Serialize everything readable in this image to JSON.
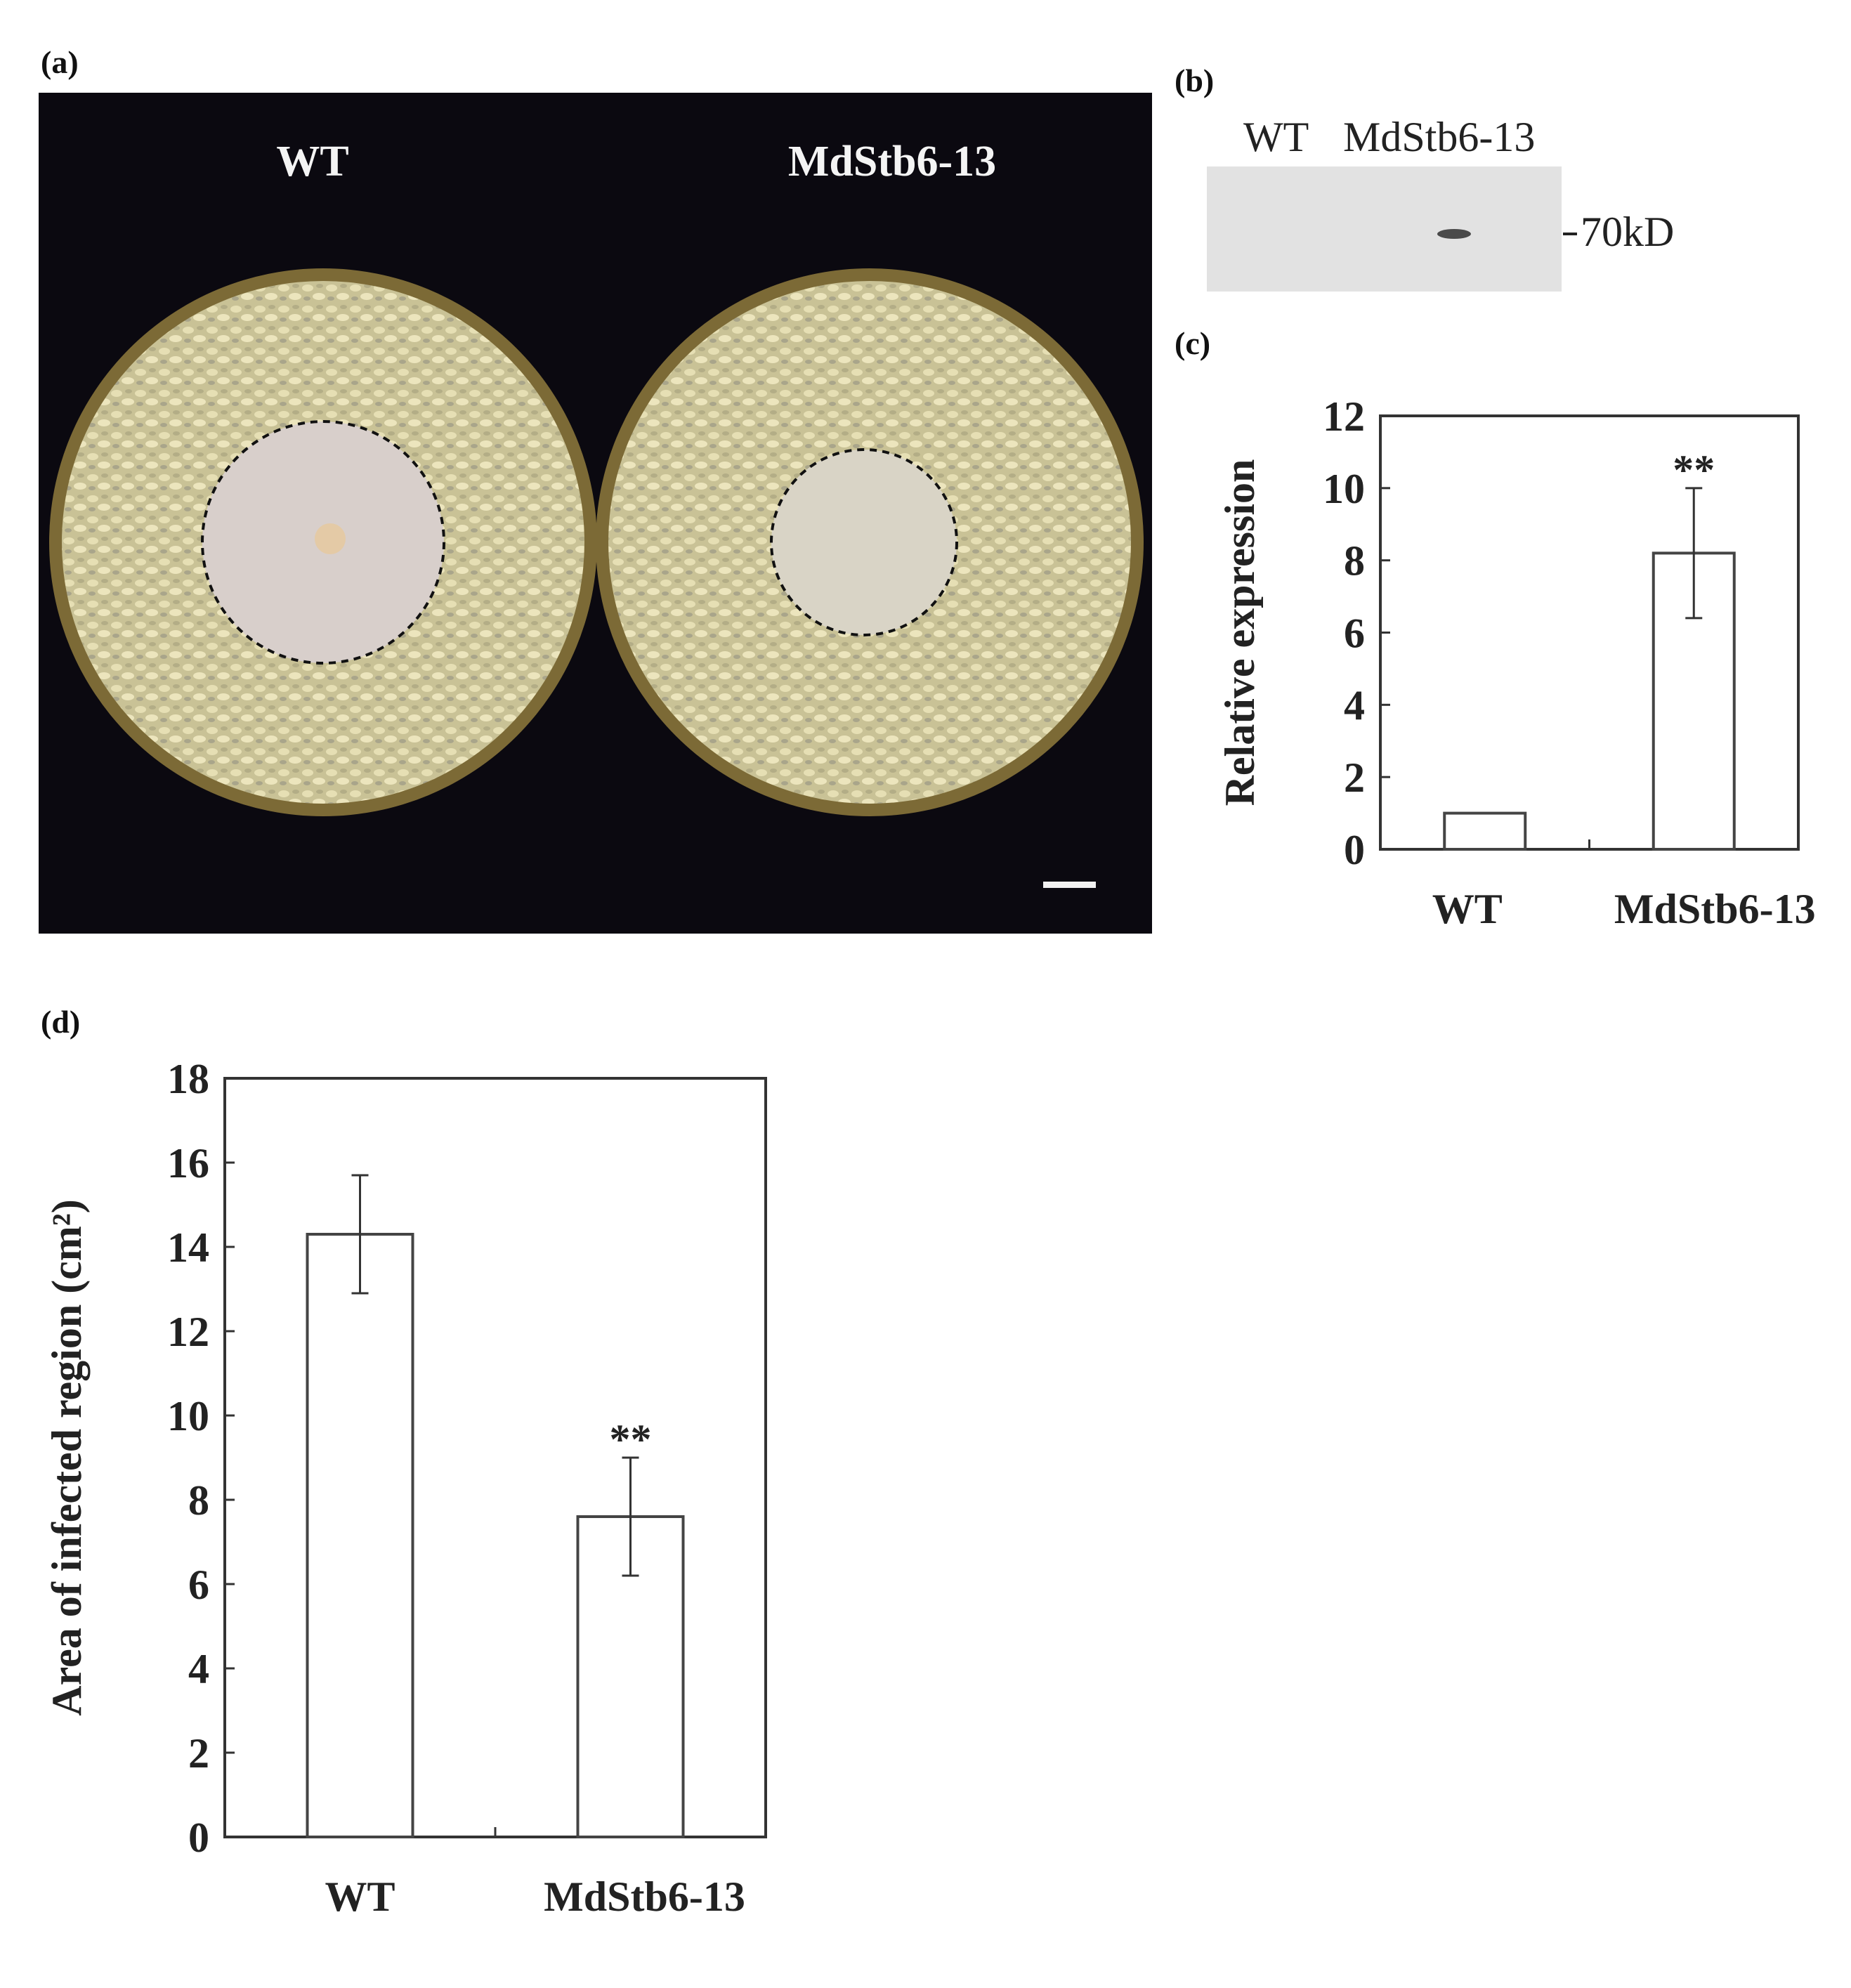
{
  "panel_labels": {
    "a": "(a)",
    "b": "(b)",
    "c": "(c)",
    "d": "(d)"
  },
  "photo": {
    "left_label": "WT",
    "right_label": "MdStb6-13",
    "background": "#0b0910",
    "plate_fill": "#cfc79c",
    "lesion_fill": "#d9d0cc"
  },
  "blot": {
    "lanes": [
      "WT",
      "MdStb6-13"
    ],
    "marker": "70kD"
  },
  "chart_data": [
    {
      "type": "bar",
      "panel": "c",
      "categories": [
        "WT",
        "MdStb6-13"
      ],
      "values": [
        1.0,
        8.2
      ],
      "errors": [
        0,
        1.8
      ],
      "annotations": [
        "",
        "**"
      ],
      "ylabel": "Relative expression",
      "xlabel": "",
      "ylim": [
        0,
        12
      ],
      "yticks": [
        0,
        2,
        4,
        6,
        8,
        10,
        12
      ],
      "grid": false
    },
    {
      "type": "bar",
      "panel": "d",
      "categories": [
        "WT",
        "MdStb6-13"
      ],
      "values": [
        14.3,
        7.6
      ],
      "errors": [
        1.4,
        1.4
      ],
      "annotations": [
        "",
        "**"
      ],
      "ylabel": "Area of infected region (cm²)",
      "xlabel": "",
      "ylim": [
        0,
        18
      ],
      "yticks": [
        0,
        2,
        4,
        6,
        8,
        10,
        12,
        14,
        16,
        18
      ],
      "grid": false
    }
  ]
}
